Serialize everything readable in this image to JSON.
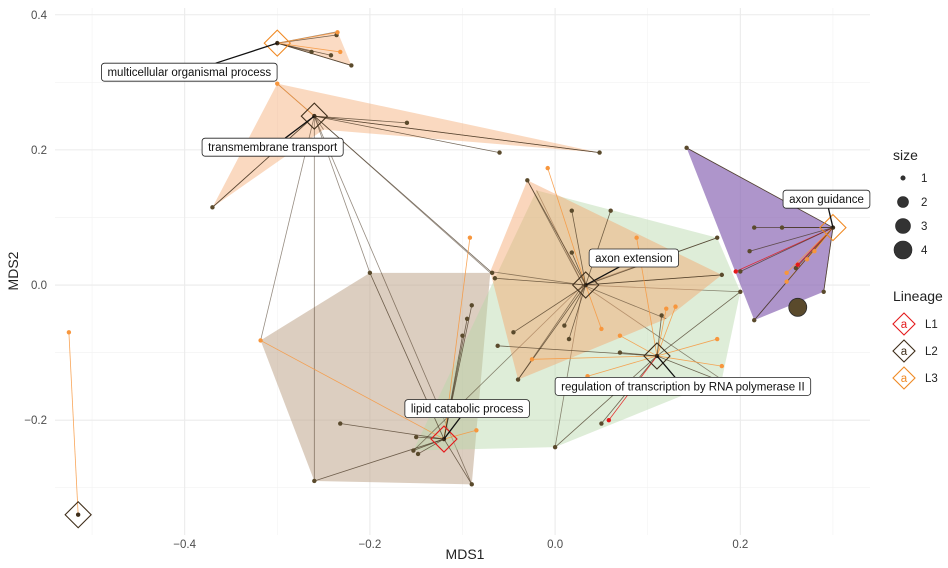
{
  "chart_data": {
    "type": "scatter",
    "title": "",
    "xlabel": "MDS1",
    "ylabel": "MDS2",
    "xlim": [
      -0.54,
      0.34
    ],
    "ylim": [
      -0.37,
      0.41
    ],
    "xticks": [
      -0.4,
      -0.2,
      0.0,
      0.2
    ],
    "xtick_labels": [
      "−0.4",
      "−0.2",
      "0.0",
      "0.2"
    ],
    "yticks": [
      -0.2,
      0.0,
      0.2,
      0.4
    ],
    "ytick_labels": [
      "−0.2",
      "0.0",
      "0.2",
      "0.4"
    ],
    "grid": true,
    "legend_position": "right",
    "colors": {
      "L1": "#e41a1c",
      "L2": "#3f2e1a",
      "L3": "#f08a24",
      "dark_point": "#5a4a2c",
      "orange_point": "#f7963d"
    },
    "size_legend": {
      "title": "size",
      "values": [
        1,
        2,
        3,
        4
      ]
    },
    "lineage_legend": {
      "title": "Lineage",
      "key_glyph": "a",
      "entries": [
        "L1",
        "L2",
        "L3"
      ]
    },
    "clusters": [
      {
        "lineage": "L3",
        "fill": "#f4a46a",
        "opacity": 0.4,
        "center": [
          -0.3,
          0.358
        ],
        "hull": [
          [
            -0.3,
            0.358
          ],
          [
            -0.235,
            0.375
          ],
          [
            -0.22,
            0.325
          ]
        ]
      },
      {
        "lineage": "L3",
        "fill": "#f4a46a",
        "opacity": 0.42,
        "center": [
          -0.26,
          0.25
        ],
        "hull": [
          [
            -0.37,
            0.115
          ],
          [
            -0.3,
            0.298
          ],
          [
            0.048,
            0.196
          ],
          [
            -0.25,
            0.23
          ]
        ]
      },
      {
        "lineage": "L2",
        "fill": "#bfa58c",
        "opacity": 0.55,
        "center": [
          -0.26,
          0.25
        ],
        "hull": [
          [
            -0.318,
            -0.082
          ],
          [
            -0.2,
            0.018
          ],
          [
            -0.07,
            0.018
          ],
          [
            -0.09,
            -0.295
          ],
          [
            -0.26,
            -0.29
          ]
        ]
      },
      {
        "lineage": "L2",
        "fill": "#b5d7a8",
        "opacity": 0.45,
        "center": [
          0.03,
          0.0
        ],
        "hull": [
          [
            -0.153,
            -0.245
          ],
          [
            -0.02,
            0.14
          ],
          [
            0.175,
            0.07
          ],
          [
            0.2,
            -0.01
          ],
          [
            0.18,
            -0.14
          ],
          [
            0.0,
            -0.24
          ]
        ]
      },
      {
        "lineage": "L2",
        "fill": "#f4a46a",
        "opacity": 0.45,
        "center": [
          0.03,
          0.0
        ],
        "hull": [
          [
            -0.03,
            0.155
          ],
          [
            0.18,
            0.015
          ],
          [
            0.12,
            -0.05
          ],
          [
            -0.04,
            -0.14
          ],
          [
            -0.07,
            0.02
          ]
        ]
      },
      {
        "lineage": "L1",
        "fill": "#8b68b5",
        "opacity": 0.7,
        "center": [
          0.3,
          0.085
        ],
        "hull": [
          [
            0.142,
            0.203
          ],
          [
            0.3,
            0.085
          ],
          [
            0.29,
            -0.01
          ],
          [
            0.215,
            -0.052
          ]
        ]
      }
    ],
    "hubs": [
      {
        "x": 0.3,
        "y": 0.085,
        "lineage": "L3",
        "label": "axon guidance"
      },
      {
        "x": 0.033,
        "y": 0.0,
        "lineage": "L2",
        "label": "axon extension"
      },
      {
        "x": 0.11,
        "y": -0.105,
        "lineage": "L2",
        "label": "regulation of transcription by RNA polymerase II"
      },
      {
        "x": -0.12,
        "y": -0.228,
        "lineage": "L1",
        "label": "lipid catabolic process"
      },
      {
        "x": -0.26,
        "y": 0.25,
        "lineage": "L2",
        "label": "transmembrane transport"
      },
      {
        "x": -0.3,
        "y": 0.358,
        "lineage": "L3",
        "label": "multicellular organismal process"
      },
      {
        "x": -0.515,
        "y": -0.34,
        "lineage": "L2",
        "label": ""
      }
    ],
    "callouts": [
      {
        "hub": 0,
        "text": "axon guidance",
        "box": [
          0.293,
          0.127
        ]
      },
      {
        "hub": 1,
        "text": "axon extension",
        "box": [
          0.085,
          0.04
        ]
      },
      {
        "hub": 2,
        "text": "regulation of transcription by RNA polymerase II",
        "box": [
          0.138,
          -0.15
        ]
      },
      {
        "hub": 3,
        "text": "lipid catabolic process",
        "box": [
          -0.095,
          -0.183
        ]
      },
      {
        "hub": 4,
        "text": "transmembrane transport",
        "box": [
          -0.305,
          0.204
        ]
      },
      {
        "hub": 5,
        "text": "multicellular organismal process",
        "box": [
          -0.395,
          0.315
        ]
      }
    ],
    "points": [
      {
        "x": -0.242,
        "y": 0.34,
        "size": 1,
        "color": "dark",
        "hub": 5
      },
      {
        "x": -0.236,
        "y": 0.37,
        "size": 1,
        "color": "dark",
        "hub": 5
      },
      {
        "x": -0.235,
        "y": 0.374,
        "size": 1,
        "color": "orange",
        "hub": 5
      },
      {
        "x": -0.263,
        "y": 0.345,
        "size": 1,
        "color": "dark",
        "hub": 5
      },
      {
        "x": -0.22,
        "y": 0.325,
        "size": 1,
        "color": "dark",
        "hub": 5
      },
      {
        "x": -0.232,
        "y": 0.345,
        "size": 1,
        "color": "orange",
        "hub": 5
      },
      {
        "x": -0.37,
        "y": 0.115,
        "size": 1,
        "color": "dark",
        "hub": 4
      },
      {
        "x": -0.3,
        "y": 0.298,
        "size": 1,
        "color": "orange",
        "hub": 4
      },
      {
        "x": -0.16,
        "y": 0.24,
        "size": 1,
        "color": "dark",
        "hub": 4
      },
      {
        "x": -0.06,
        "y": 0.196,
        "size": 1,
        "color": "dark",
        "hub": 4
      },
      {
        "x": 0.048,
        "y": 0.196,
        "size": 1,
        "color": "dark",
        "hub": 4
      },
      {
        "x": -0.068,
        "y": 0.018,
        "size": 1,
        "color": "dark",
        "hub": 4
      },
      {
        "x": -0.2,
        "y": 0.018,
        "size": 1,
        "color": "dark",
        "hub": 3
      },
      {
        "x": -0.318,
        "y": -0.082,
        "size": 1,
        "color": "orange",
        "hub": 3
      },
      {
        "x": -0.232,
        "y": -0.205,
        "size": 1,
        "color": "dark",
        "hub": 3
      },
      {
        "x": -0.26,
        "y": -0.29,
        "size": 1,
        "color": "dark",
        "hub": 3
      },
      {
        "x": -0.15,
        "y": -0.225,
        "size": 1,
        "color": "dark",
        "hub": 3
      },
      {
        "x": -0.148,
        "y": -0.25,
        "size": 1,
        "color": "dark",
        "hub": 3
      },
      {
        "x": -0.153,
        "y": -0.245,
        "size": 1,
        "color": "dark",
        "hub": 3
      },
      {
        "x": -0.09,
        "y": -0.295,
        "size": 1,
        "color": "dark",
        "hub": 3
      },
      {
        "x": -0.085,
        "y": -0.215,
        "size": 1,
        "color": "orange",
        "hub": 3
      },
      {
        "x": -0.092,
        "y": 0.07,
        "size": 1,
        "color": "orange",
        "hub": 3
      },
      {
        "x": -0.09,
        "y": -0.03,
        "size": 1,
        "color": "dark",
        "hub": 3
      },
      {
        "x": -0.095,
        "y": -0.05,
        "size": 1,
        "color": "dark",
        "hub": 3
      },
      {
        "x": -0.1,
        "y": -0.075,
        "size": 1,
        "color": "dark",
        "hub": 3
      },
      {
        "x": -0.03,
        "y": 0.155,
        "size": 1,
        "color": "dark",
        "hub": 1
      },
      {
        "x": -0.008,
        "y": 0.173,
        "size": 1,
        "color": "orange",
        "hub": 1
      },
      {
        "x": 0.018,
        "y": 0.11,
        "size": 1,
        "color": "dark",
        "hub": 1
      },
      {
        "x": 0.06,
        "y": 0.11,
        "size": 1,
        "color": "dark",
        "hub": 1
      },
      {
        "x": 0.018,
        "y": 0.048,
        "size": 1,
        "color": "dark",
        "hub": 1
      },
      {
        "x": -0.065,
        "y": 0.01,
        "size": 1,
        "color": "dark",
        "hub": 1
      },
      {
        "x": 0.18,
        "y": 0.015,
        "size": 1,
        "color": "dark",
        "hub": 1
      },
      {
        "x": 0.175,
        "y": 0.07,
        "size": 1,
        "color": "dark",
        "hub": 1
      },
      {
        "x": -0.045,
        "y": -0.07,
        "size": 1,
        "color": "dark",
        "hub": 1
      },
      {
        "x": -0.04,
        "y": -0.14,
        "size": 1,
        "color": "dark",
        "hub": 1
      },
      {
        "x": 0.01,
        "y": -0.06,
        "size": 1,
        "color": "dark",
        "hub": 1
      },
      {
        "x": 0.015,
        "y": -0.08,
        "size": 1,
        "color": "dark",
        "hub": 1
      },
      {
        "x": 0.05,
        "y": -0.065,
        "size": 1,
        "color": "orange",
        "hub": 1
      },
      {
        "x": 0.035,
        "y": -0.135,
        "size": 1,
        "color": "orange",
        "hub": 2
      },
      {
        "x": -0.025,
        "y": -0.11,
        "size": 1,
        "color": "orange",
        "hub": 2
      },
      {
        "x": 0.07,
        "y": -0.075,
        "size": 1,
        "color": "orange",
        "hub": 2
      },
      {
        "x": 0.088,
        "y": 0.07,
        "size": 1,
        "color": "orange",
        "hub": 2
      },
      {
        "x": 0.12,
        "y": -0.035,
        "size": 1,
        "color": "orange",
        "hub": 2
      },
      {
        "x": 0.13,
        "y": -0.032,
        "size": 1,
        "color": "orange",
        "hub": 2
      },
      {
        "x": 0.115,
        "y": -0.045,
        "size": 1,
        "color": "dark",
        "hub": 2
      },
      {
        "x": 0.07,
        "y": -0.1,
        "size": 1,
        "color": "dark",
        "hub": 2
      },
      {
        "x": 0.05,
        "y": -0.205,
        "size": 1,
        "color": "dark",
        "hub": 2
      },
      {
        "x": 0.0,
        "y": -0.24,
        "size": 1,
        "color": "dark",
        "hub": 2
      },
      {
        "x": 0.058,
        "y": -0.2,
        "size": 1,
        "color": "red",
        "hub": 2
      },
      {
        "x": 0.18,
        "y": -0.12,
        "size": 1,
        "color": "orange",
        "hub": 2
      },
      {
        "x": 0.175,
        "y": -0.08,
        "size": 1,
        "color": "orange",
        "hub": 2
      },
      {
        "x": 0.2,
        "y": -0.01,
        "size": 1,
        "color": "dark",
        "hub": 2
      },
      {
        "x": 0.175,
        "y": -0.14,
        "size": 1,
        "color": "dark",
        "hub": 2
      },
      {
        "x": -0.062,
        "y": -0.09,
        "size": 1,
        "color": "dark",
        "hub": 2
      },
      {
        "x": 0.142,
        "y": 0.203,
        "size": 1,
        "color": "dark",
        "hub": 0
      },
      {
        "x": 0.215,
        "y": 0.085,
        "size": 1,
        "color": "dark",
        "hub": 0
      },
      {
        "x": 0.245,
        "y": 0.085,
        "size": 1,
        "color": "dark",
        "hub": 0
      },
      {
        "x": 0.21,
        "y": 0.05,
        "size": 1,
        "color": "dark",
        "hub": 0
      },
      {
        "x": 0.195,
        "y": 0.02,
        "size": 1,
        "color": "red",
        "hub": 0
      },
      {
        "x": 0.2,
        "y": 0.02,
        "size": 1,
        "color": "dark",
        "hub": 0
      },
      {
        "x": 0.26,
        "y": 0.025,
        "size": 1,
        "color": "dark",
        "hub": 0
      },
      {
        "x": 0.262,
        "y": 0.03,
        "size": 1,
        "color": "red",
        "hub": 0
      },
      {
        "x": 0.25,
        "y": 0.018,
        "size": 1,
        "color": "orange",
        "hub": 0
      },
      {
        "x": 0.25,
        "y": 0.005,
        "size": 1,
        "color": "orange",
        "hub": 0
      },
      {
        "x": 0.272,
        "y": 0.038,
        "size": 1,
        "color": "orange",
        "hub": 0
      },
      {
        "x": 0.28,
        "y": 0.05,
        "size": 1,
        "color": "orange",
        "hub": 0
      },
      {
        "x": 0.215,
        "y": -0.052,
        "size": 1,
        "color": "dark",
        "hub": 0
      },
      {
        "x": 0.29,
        "y": -0.01,
        "size": 1,
        "color": "dark",
        "hub": 0
      },
      {
        "x": 0.262,
        "y": -0.033,
        "size": 4,
        "color": "dark",
        "hub": -1
      },
      {
        "x": -0.525,
        "y": -0.07,
        "size": 1,
        "color": "orange",
        "hub": 6
      }
    ]
  }
}
